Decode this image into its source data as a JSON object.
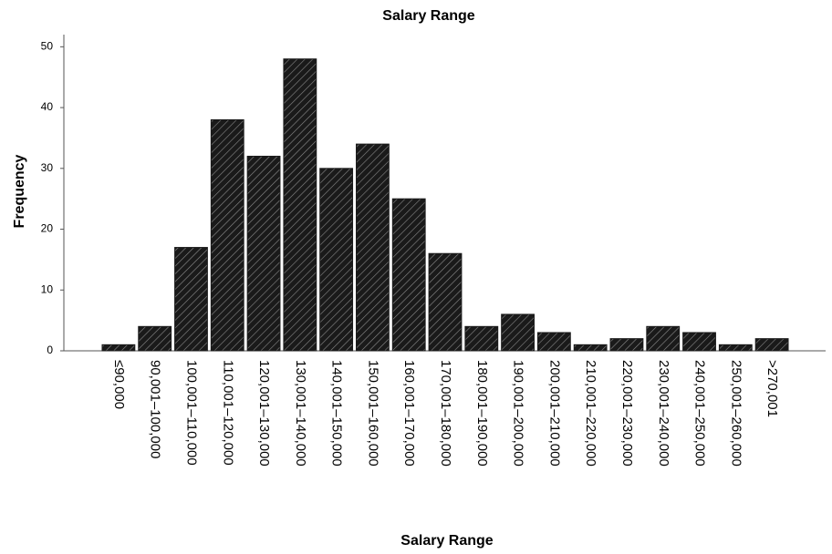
{
  "chart_data": {
    "type": "bar",
    "title": "Salary Range",
    "x_label": "Salary Range",
    "y_label": "Frequency",
    "categories": [
      "≤90,000",
      "90,001–100,000",
      "100,001–110,000",
      "110,001–120,000",
      "120,001–130,000",
      "130,001–140,000",
      "140,001–150,000",
      "150,001–160,000",
      "160,001–170,000",
      "170,001–180,000",
      "180,001–190,000",
      "190,001–200,000",
      "200,001–210,000",
      "210,001–220,000",
      "220,001–230,000",
      "230,001–240,000",
      "240,001–250,000",
      "250,001–260,000",
      ">270,001"
    ],
    "values": [
      1,
      4,
      17,
      38,
      32,
      48,
      30,
      34,
      25,
      16,
      4,
      6,
      3,
      1,
      2,
      4,
      3,
      1,
      2
    ],
    "color": "#1a1a1a",
    "ylim": [
      0,
      52
    ],
    "yticks": [
      0,
      10,
      20,
      30,
      40,
      50
    ],
    "grid": false
  }
}
